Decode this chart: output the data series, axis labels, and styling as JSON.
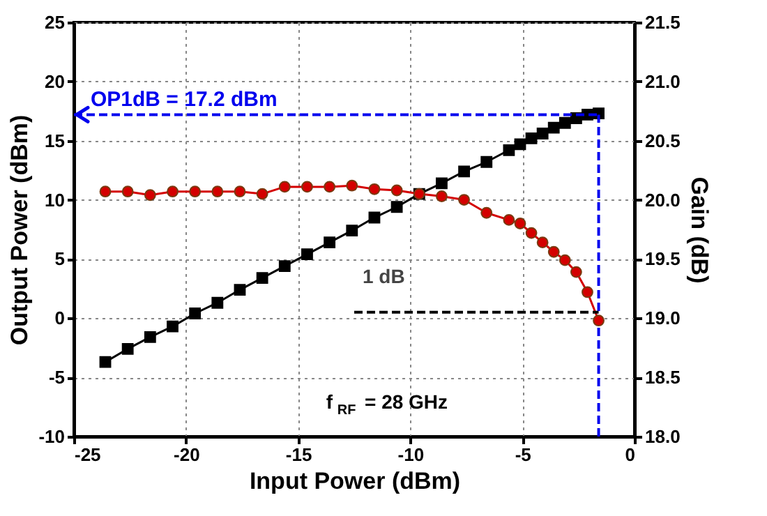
{
  "chart_data": {
    "type": "line",
    "xlabel": "Input Power (dBm)",
    "ylabel": "Output Power (dBm)",
    "y2label": "Gain (dB)",
    "xlim": [
      -25,
      0
    ],
    "xticks": [
      -25,
      -20,
      -15,
      -10,
      -5,
      0
    ],
    "ylim": [
      -10,
      25
    ],
    "yticks": [
      -10,
      -5,
      0,
      5,
      10,
      15,
      20,
      25
    ],
    "y2lim": [
      18.0,
      21.5
    ],
    "y2ticks": [
      {
        "value": 18.0,
        "label": "18.0"
      },
      {
        "value": 18.5,
        "label": "18.5"
      },
      {
        "value": 19.0,
        "label": "19.0"
      },
      {
        "value": 19.5,
        "label": "19.5"
      },
      {
        "value": 20.0,
        "label": "20.0"
      },
      {
        "value": 20.5,
        "label": "20.5"
      },
      {
        "value": 21.0,
        "label": "21.0"
      },
      {
        "value": 21.5,
        "label": "21.5"
      }
    ],
    "grid": true,
    "series": [
      {
        "color": "#000000",
        "marker": "square",
        "x": [
          -23.6,
          -22.6,
          -21.6,
          -20.6,
          -19.6,
          -18.6,
          -17.6,
          -16.6,
          -15.6,
          -14.6,
          -13.6,
          -12.6,
          -11.6,
          -10.6,
          -9.6,
          -8.6,
          -7.6,
          -6.6,
          -5.6,
          -5.1,
          -4.6,
          -4.1,
          -3.6,
          -3.1,
          -2.6,
          -2.1,
          -1.6
        ],
        "values": [
          -3.7,
          -2.6,
          -1.6,
          -0.7,
          0.4,
          1.3,
          2.4,
          3.4,
          4.4,
          5.4,
          6.4,
          7.4,
          8.5,
          9.4,
          10.5,
          11.4,
          12.4,
          13.2,
          14.2,
          14.7,
          15.2,
          15.6,
          16.1,
          16.5,
          16.9,
          17.2,
          17.3
        ]
      },
      {
        "color": "#d40000",
        "marker": "circle",
        "axis": "y2",
        "x": [
          -23.6,
          -22.6,
          -21.6,
          -20.6,
          -19.6,
          -18.6,
          -17.6,
          -16.6,
          -15.6,
          -14.6,
          -13.6,
          -12.6,
          -11.6,
          -10.6,
          -9.6,
          -8.6,
          -7.6,
          -6.6,
          -5.6,
          -5.1,
          -4.6,
          -4.1,
          -3.6,
          -3.1,
          -2.6,
          -2.1,
          -1.6
        ],
        "values": [
          20.07,
          20.07,
          20.04,
          20.07,
          20.07,
          20.07,
          20.07,
          20.05,
          20.11,
          20.11,
          20.11,
          20.12,
          20.09,
          20.08,
          20.05,
          20.03,
          20.0,
          19.89,
          19.83,
          19.8,
          19.72,
          19.64,
          19.56,
          19.49,
          19.39,
          19.22,
          18.98
        ]
      }
    ],
    "ref_lines": [
      {
        "axis": "y",
        "value": 17.2,
        "label": "OP1dB = 17.2 dBm",
        "color": "#0000ee",
        "line_style": "dashed"
      },
      {
        "axis": "x",
        "value": -1.6,
        "color": "#0000ee",
        "line_style": "dashed"
      },
      {
        "axis": "y2",
        "value": 19.05,
        "label": "1 dB",
        "color": "#000000",
        "line_style": "dashed"
      }
    ],
    "annotations": [
      "f$_{RF}$ = 28 GHz"
    ]
  }
}
